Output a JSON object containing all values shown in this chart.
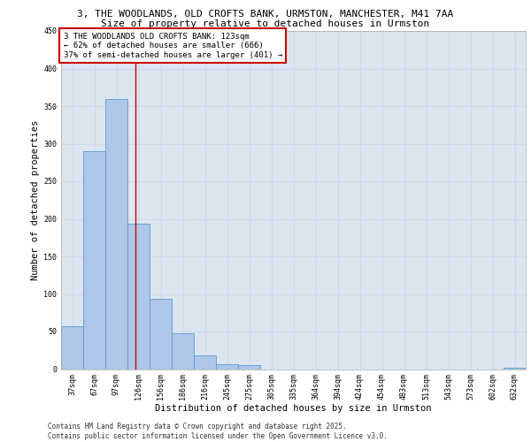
{
  "title_line1": "3, THE WOODLANDS, OLD CROFTS BANK, URMSTON, MANCHESTER, M41 7AA",
  "title_line2": "Size of property relative to detached houses in Urmston",
  "xlabel": "Distribution of detached houses by size in Urmston",
  "ylabel": "Number of detached properties",
  "categories": [
    "37sqm",
    "67sqm",
    "97sqm",
    "126sqm",
    "156sqm",
    "186sqm",
    "216sqm",
    "245sqm",
    "275sqm",
    "305sqm",
    "335sqm",
    "364sqm",
    "394sqm",
    "424sqm",
    "454sqm",
    "483sqm",
    "513sqm",
    "543sqm",
    "573sqm",
    "602sqm",
    "632sqm"
  ],
  "values": [
    57,
    290,
    360,
    193,
    93,
    48,
    18,
    7,
    5,
    0,
    0,
    0,
    0,
    0,
    0,
    0,
    0,
    0,
    0,
    0,
    2
  ],
  "bar_color": "#aec6e8",
  "bar_edge_color": "#5b9bd5",
  "grid_color": "#d0d8e8",
  "background_color": "#dce6f1",
  "annotation_box_text": "3 THE WOODLANDS OLD CROFTS BANK: 123sqm\n← 62% of detached houses are smaller (666)\n37% of semi-detached houses are larger (401) →",
  "annotation_box_color": "#ffffff",
  "annotation_box_edge_color": "#cc0000",
  "vline_x": 2.87,
  "vline_color": "#cc0000",
  "ylim": [
    0,
    450
  ],
  "yticks": [
    0,
    50,
    100,
    150,
    200,
    250,
    300,
    350,
    400,
    450
  ],
  "footer_line1": "Contains HM Land Registry data © Crown copyright and database right 2025.",
  "footer_line2": "Contains public sector information licensed under the Open Government Licence v3.0.",
  "title_fontsize": 8,
  "subtitle_fontsize": 8,
  "axis_label_fontsize": 7.5,
  "tick_fontsize": 6,
  "annotation_fontsize": 6.5,
  "footer_fontsize": 5.5
}
